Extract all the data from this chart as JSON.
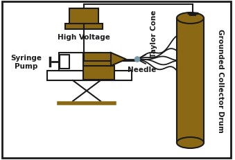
{
  "brown": "#8B6914",
  "black": "#1a1a1a",
  "white": "#ffffff",
  "bg": "#ffffff",
  "needle_dot": "#7799aa",
  "figsize": [
    3.39,
    2.32
  ],
  "dpi": 100,
  "labels": {
    "high_voltage": "High Voltage",
    "syringe_pump": "Syringe\nPump",
    "needle": "Needle",
    "taylor_cone": "Taylor Cone",
    "grounded_drum": "Grounded Collector Drum"
  }
}
